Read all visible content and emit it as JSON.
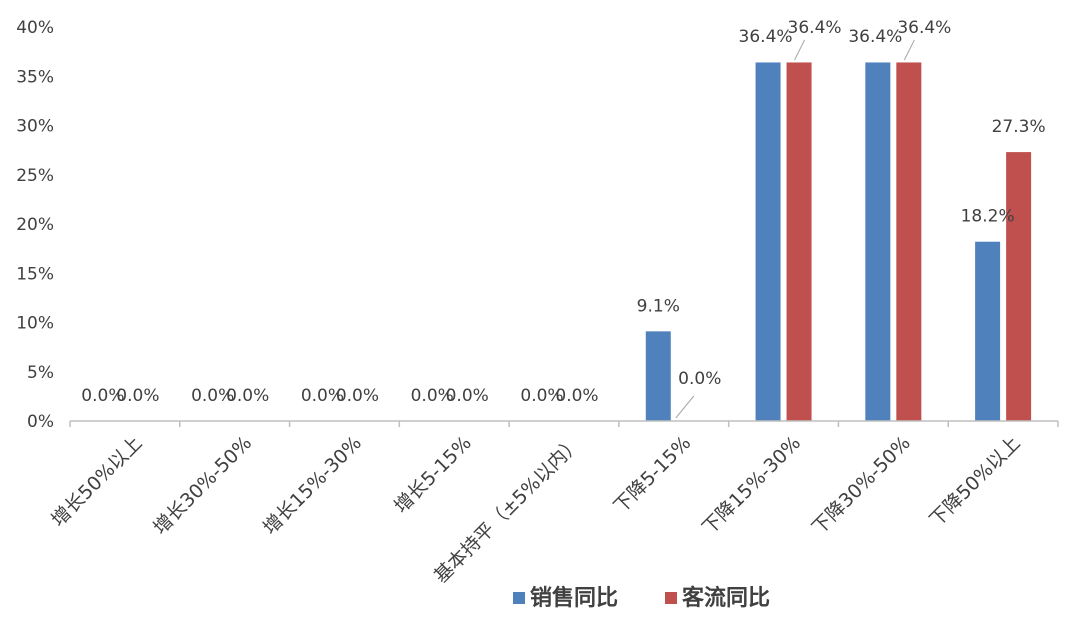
{
  "chart_data": {
    "type": "bar",
    "categories": [
      "增长50%以上",
      "增长30%-50%",
      "增长15%-30%",
      "增长5-15%",
      "基本持平（±5%以内）",
      "下降5-15%",
      "下降15%-30%",
      "下降30%-50%",
      "下降50%以上"
    ],
    "series": [
      {
        "name": "销售同比",
        "color": "#4f81bd",
        "values": [
          0.0,
          0.0,
          0.0,
          0.0,
          0.0,
          9.1,
          36.4,
          36.4,
          18.2
        ]
      },
      {
        "name": "客流同比",
        "color": "#c0504d",
        "values": [
          0.0,
          0.0,
          0.0,
          0.0,
          0.0,
          0.0,
          36.4,
          36.4,
          27.3
        ]
      }
    ],
    "yticks": [
      "0%",
      "5%",
      "10%",
      "15%",
      "20%",
      "25%",
      "30%",
      "35%",
      "40%"
    ],
    "ylim": [
      0,
      40
    ],
    "value_suffix": "%",
    "grid": false,
    "legend_position": "bottom"
  }
}
